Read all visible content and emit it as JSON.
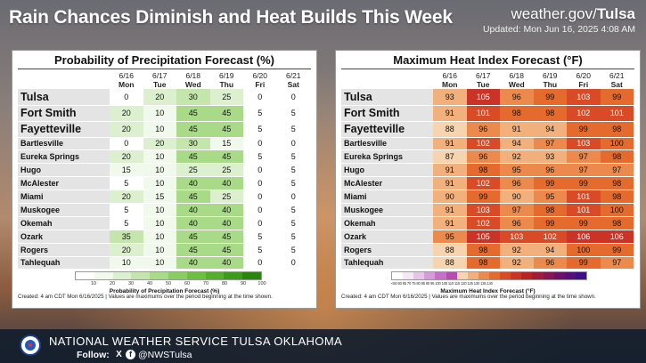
{
  "header": {
    "title": "Rain Chances Diminish and Heat Builds This Week",
    "site_prefix": "weather.gov/",
    "site_bold": "Tulsa",
    "updated": "Updated: Mon Jun 16, 2025 4:08 AM"
  },
  "dates": [
    "6/16",
    "6/17",
    "6/18",
    "6/19",
    "6/20",
    "6/21"
  ],
  "days": [
    "Mon",
    "Tue",
    "Wed",
    "Thu",
    "Fri",
    "Sat"
  ],
  "cities": [
    "Tulsa",
    "Fort Smith",
    "Fayetteville",
    "Bartlesville",
    "Eureka Springs",
    "Hugo",
    "McAlester",
    "Miami",
    "Muskogee",
    "Okemah",
    "Ozark",
    "Rogers",
    "Tahlequah"
  ],
  "pop_panel": {
    "title": "Probability of Precipitation Forecast (%)",
    "rows": [
      [
        0,
        20,
        30,
        25,
        0,
        0
      ],
      [
        20,
        10,
        45,
        45,
        5,
        5
      ],
      [
        20,
        10,
        45,
        45,
        5,
        5
      ],
      [
        0,
        20,
        30,
        15,
        0,
        0
      ],
      [
        20,
        10,
        45,
        45,
        5,
        5
      ],
      [
        15,
        10,
        25,
        25,
        0,
        5
      ],
      [
        5,
        10,
        40,
        40,
        0,
        5
      ],
      [
        20,
        15,
        45,
        25,
        0,
        0
      ],
      [
        5,
        10,
        40,
        40,
        0,
        5
      ],
      [
        5,
        10,
        40,
        40,
        0,
        5
      ],
      [
        35,
        10,
        45,
        45,
        5,
        5
      ],
      [
        20,
        10,
        45,
        45,
        5,
        5
      ],
      [
        10,
        10,
        40,
        40,
        0,
        0
      ]
    ],
    "legend_ticks": [
      "10",
      "20",
      "30",
      "40",
      "50",
      "60",
      "70",
      "80",
      "90",
      "100"
    ],
    "legend_label": "Probability of Precipitation Forecast (%)",
    "footer": "Created: 4 am CDT Mon 6/16/2025  |  Values are maximums over the period beginning at the time shown."
  },
  "heat_panel": {
    "title": "Maximum Heat Index Forecast (°F)",
    "rows": [
      [
        93,
        105,
        96,
        99,
        103,
        99
      ],
      [
        91,
        101,
        98,
        98,
        102,
        101
      ],
      [
        88,
        96,
        91,
        94,
        99,
        98
      ],
      [
        91,
        102,
        94,
        97,
        103,
        100
      ],
      [
        87,
        96,
        92,
        93,
        97,
        98
      ],
      [
        91,
        98,
        95,
        96,
        97,
        97
      ],
      [
        91,
        102,
        96,
        99,
        99,
        98
      ],
      [
        90,
        99,
        90,
        95,
        101,
        98
      ],
      [
        91,
        103,
        97,
        98,
        101,
        100
      ],
      [
        91,
        102,
        96,
        99,
        99,
        98
      ],
      [
        95,
        105,
        103,
        102,
        106,
        106
      ],
      [
        88,
        98,
        92,
        94,
        100,
        99
      ],
      [
        88,
        98,
        92,
        96,
        99,
        97
      ]
    ],
    "legend_ticks": "<60 60 65 70 75 80 85 90 95 100 105 110 115 120 125 130 135 140",
    "legend_label": "Maximum Heat Index Forecast (°F)",
    "footer": "Created: 4 am CDT Mon 6/16/2025  |  Values are maximums over the period beginning at the time shown."
  },
  "footer": {
    "org": "NATIONAL WEATHER SERVICE TULSA OKLAHOMA",
    "follow": "Follow:",
    "x_glyph": "X",
    "fb_glyph": "f",
    "handle": "@NWSTulsa"
  },
  "colors": {
    "pop_scale": [
      "#ffffff",
      "#f1f9ec",
      "#dcf0cf",
      "#c4e6ad",
      "#a8da88",
      "#8acd62",
      "#6dbf42",
      "#55ae2c",
      "#3e9a1c",
      "#2b8410"
    ],
    "heat_scale": [
      "#f7d4b0",
      "#f2b07c",
      "#ec8a4d",
      "#e56a2e",
      "#d94b26",
      "#cc3327"
    ]
  }
}
